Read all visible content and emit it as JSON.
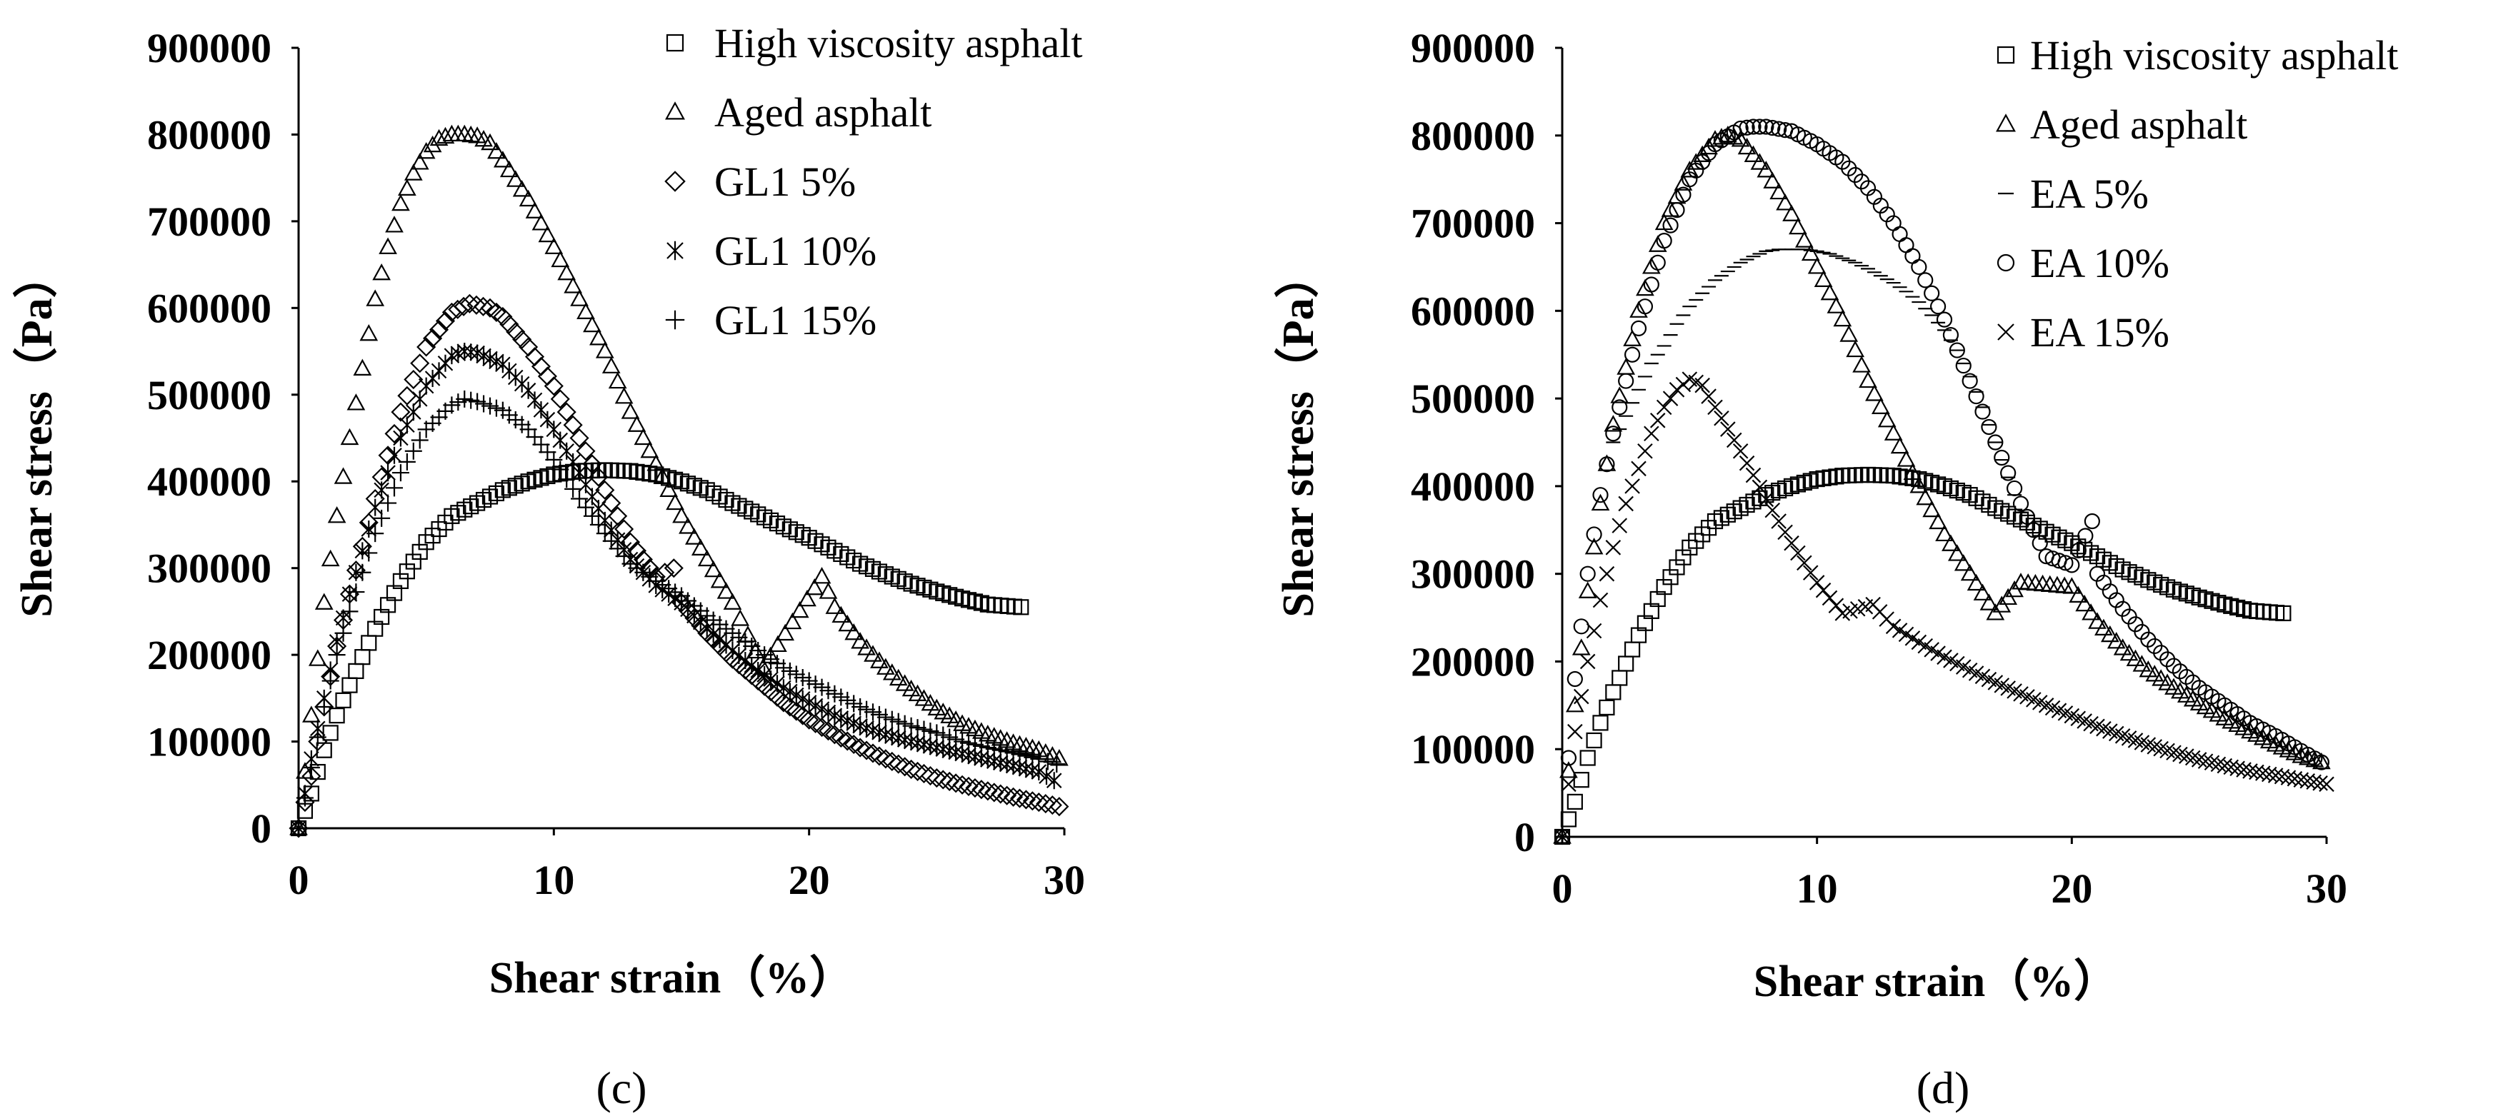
{
  "chart_data": [
    {
      "id": "c",
      "type": "scatter",
      "panel_label": "(c)",
      "xlabel": "Shear strain（%）",
      "ylabel": "Shear stress（Pa）",
      "xlim": [
        0,
        30
      ],
      "ylim": [
        0,
        900000
      ],
      "xticks": [
        "0",
        "10",
        "20",
        "30"
      ],
      "yticks": [
        "0",
        "100000",
        "200000",
        "300000",
        "400000",
        "500000",
        "600000",
        "700000",
        "800000",
        "900000"
      ],
      "legend_position": "top-right",
      "series": [
        {
          "name": "High viscosity asphalt",
          "marker": "square",
          "x": [
            0,
            0.5,
            1,
            1.5,
            2,
            3,
            4,
            5,
            6,
            7,
            8,
            9,
            10,
            11,
            12,
            13,
            14,
            15,
            16,
            17,
            18,
            19,
            20,
            21,
            22,
            23,
            24,
            25,
            26,
            27,
            28.3
          ],
          "y": [
            0,
            40000,
            90000,
            130000,
            165000,
            230000,
            285000,
            330000,
            360000,
            375000,
            390000,
            400000,
            408000,
            412000,
            413000,
            412000,
            408000,
            400000,
            390000,
            375000,
            362000,
            348000,
            335000,
            320000,
            305000,
            293000,
            282000,
            273000,
            265000,
            258000,
            255000
          ]
        },
        {
          "name": "Aged asphalt",
          "marker": "triangle",
          "x": [
            0,
            0.5,
            1,
            1.5,
            2,
            2.5,
            3,
            3.5,
            4,
            4.5,
            5,
            5.5,
            6,
            6.5,
            7,
            7.5,
            8,
            9,
            10,
            11,
            12,
            13,
            14,
            15,
            16,
            17,
            18.2,
            20.5,
            21,
            22,
            23,
            24,
            25,
            26,
            27,
            28,
            29,
            29.8
          ],
          "y": [
            0,
            130000,
            260000,
            360000,
            450000,
            530000,
            610000,
            670000,
            720000,
            755000,
            780000,
            795000,
            800000,
            800000,
            798000,
            790000,
            770000,
            725000,
            670000,
            610000,
            550000,
            480000,
            420000,
            360000,
            310000,
            260000,
            185000,
            290000,
            255000,
            215000,
            185000,
            160000,
            138000,
            120000,
            108000,
            98000,
            90000,
            80000
          ]
        },
        {
          "name": "GL1 5%",
          "marker": "diamond",
          "x": [
            0,
            0.5,
            1,
            1.5,
            2,
            3,
            4,
            5,
            6,
            6.7,
            7.5,
            8,
            9,
            10,
            11,
            12,
            13,
            14,
            14.7,
            15,
            16,
            17,
            18,
            19,
            20,
            21,
            22,
            23,
            24,
            25,
            26,
            27,
            28,
            29,
            29.8
          ],
          "y": [
            0,
            60000,
            140000,
            210000,
            270000,
            380000,
            480000,
            555000,
            595000,
            605000,
            600000,
            590000,
            555000,
            510000,
            450000,
            390000,
            330000,
            290000,
            300000,
            260000,
            225000,
            195000,
            170000,
            145000,
            125000,
            108000,
            93000,
            80000,
            68000,
            58000,
            50000,
            43000,
            36000,
            30000,
            25000
          ]
        },
        {
          "name": "GL1 10%",
          "marker": "asterisk",
          "x": [
            0,
            0.5,
            1,
            1.5,
            2,
            3,
            4,
            5,
            6,
            6.5,
            7,
            8,
            9,
            10,
            11,
            12,
            13,
            14,
            15,
            16,
            17,
            18,
            19,
            20,
            21,
            22,
            23,
            24,
            25,
            26,
            27,
            28,
            29,
            29.6
          ],
          "y": [
            0,
            80000,
            150000,
            215000,
            270000,
            370000,
            450000,
            510000,
            545000,
            550000,
            548000,
            535000,
            505000,
            460000,
            410000,
            355000,
            310000,
            280000,
            260000,
            230000,
            205000,
            182000,
            162000,
            145000,
            130000,
            118000,
            108000,
            100000,
            93000,
            86000,
            79000,
            72000,
            65000,
            55000
          ]
        },
        {
          "name": "GL1 15%",
          "marker": "plus",
          "x": [
            0,
            0.5,
            1,
            1.5,
            2,
            3,
            4,
            5,
            6,
            6.5,
            7,
            8,
            9,
            10,
            11,
            12,
            13,
            14,
            15,
            16,
            17,
            18,
            19,
            20,
            21,
            22,
            23,
            24,
            25,
            26,
            27,
            28,
            29,
            29.7
          ],
          "y": [
            0,
            70000,
            140000,
            200000,
            250000,
            340000,
            410000,
            460000,
            488000,
            495000,
            492000,
            482000,
            460000,
            425000,
            380000,
            340000,
            305000,
            285000,
            268000,
            245000,
            225000,
            205000,
            185000,
            170000,
            155000,
            140000,
            128000,
            118000,
            110000,
            100000,
            93000,
            87000,
            80000,
            74000
          ]
        }
      ]
    },
    {
      "id": "d",
      "type": "scatter",
      "panel_label": "(d)",
      "xlabel": "Shear strain（%）",
      "ylabel": "Shear stress（Pa）",
      "xlim": [
        0,
        30
      ],
      "ylim": [
        0,
        900000
      ],
      "xticks": [
        "0",
        "10",
        "20",
        "30"
      ],
      "yticks": [
        "0",
        "100000",
        "200000",
        "300000",
        "400000",
        "500000",
        "600000",
        "700000",
        "800000",
        "900000"
      ],
      "legend_position": "top-right",
      "series": [
        {
          "name": "High viscosity asphalt",
          "marker": "square",
          "x": [
            0,
            0.5,
            1,
            1.5,
            2,
            3,
            4,
            5,
            6,
            7,
            8,
            9,
            10,
            11,
            12,
            13,
            14,
            15,
            16,
            17,
            18,
            19,
            20,
            21,
            22,
            23,
            24,
            25,
            26,
            27,
            28.3
          ],
          "y": [
            0,
            40000,
            90000,
            130000,
            165000,
            230000,
            285000,
            330000,
            360000,
            375000,
            390000,
            400000,
            408000,
            412000,
            413000,
            412000,
            408000,
            400000,
            390000,
            375000,
            362000,
            348000,
            335000,
            320000,
            305000,
            293000,
            282000,
            273000,
            265000,
            258000,
            255000
          ]
        },
        {
          "name": "Aged asphalt",
          "marker": "triangle",
          "x": [
            0,
            0.5,
            1,
            1.5,
            2,
            3,
            4,
            5,
            6,
            6.5,
            7,
            8,
            9,
            10,
            11,
            12,
            13,
            14,
            15,
            16,
            17,
            18,
            20,
            21,
            22,
            23,
            24,
            25,
            26,
            27,
            28,
            29,
            29.8
          ],
          "y": [
            0,
            150000,
            280000,
            380000,
            470000,
            600000,
            700000,
            760000,
            795000,
            800000,
            795000,
            760000,
            710000,
            650000,
            590000,
            520000,
            460000,
            400000,
            345000,
            300000,
            255000,
            290000,
            285000,
            245000,
            215000,
            190000,
            170000,
            152000,
            135000,
            120000,
            105000,
            92000,
            85000
          ]
        },
        {
          "name": "EA 5%",
          "marker": "dash",
          "x": [
            2,
            2.5,
            3,
            3.5,
            4,
            4.5,
            5,
            5.5,
            6,
            6.5,
            7,
            7.5,
            8,
            8.5,
            9,
            9.5,
            10,
            10.5,
            11,
            11.5,
            12,
            12.5,
            13,
            13.5,
            14,
            14.5,
            15,
            15.5,
            16,
            16.5,
            17,
            17.5,
            18
          ],
          "y": [
            450000,
            480000,
            510000,
            540000,
            560000,
            585000,
            605000,
            620000,
            635000,
            645000,
            655000,
            662000,
            668000,
            670000,
            670000,
            670000,
            668000,
            665000,
            660000,
            655000,
            648000,
            640000,
            632000,
            622000,
            610000,
            595000,
            578000,
            555000,
            525000,
            490000,
            450000,
            410000,
            370000
          ]
        },
        {
          "name": "EA 10%",
          "marker": "circle",
          "x": [
            0,
            0.5,
            1,
            1.5,
            2,
            3,
            4,
            5,
            6,
            7,
            7.5,
            8,
            9,
            10,
            11,
            12,
            13,
            14,
            15,
            16,
            17,
            18,
            19,
            20,
            20.8,
            21,
            22,
            23,
            24,
            25,
            26,
            27,
            28,
            29,
            29.8
          ],
          "y": [
            0,
            180000,
            300000,
            390000,
            460000,
            580000,
            680000,
            750000,
            790000,
            808000,
            810000,
            810000,
            805000,
            790000,
            770000,
            740000,
            700000,
            650000,
            590000,
            520000,
            450000,
            380000,
            320000,
            310000,
            360000,
            300000,
            260000,
            225000,
            195000,
            170000,
            150000,
            130000,
            115000,
            98000,
            85000
          ]
        },
        {
          "name": "EA 15%",
          "marker": "x",
          "x": [
            0,
            0.5,
            1,
            1.5,
            2,
            2.5,
            3,
            3.5,
            4,
            4.5,
            5,
            5.5,
            6,
            7,
            8,
            9,
            10,
            11,
            12.2,
            13,
            14,
            15,
            16,
            17,
            18,
            19,
            20,
            21,
            22,
            23,
            24,
            25,
            26,
            27,
            28,
            29,
            30
          ],
          "y": [
            0,
            120000,
            200000,
            270000,
            330000,
            380000,
            420000,
            460000,
            490000,
            510000,
            522000,
            515000,
            490000,
            440000,
            385000,
            335000,
            290000,
            255000,
            265000,
            240000,
            222000,
            205000,
            190000,
            176000,
            163000,
            150000,
            138000,
            126000,
            115000,
            105000,
            96000,
            88000,
            81000,
            75000,
            70000,
            65000,
            60000
          ]
        }
      ]
    }
  ]
}
